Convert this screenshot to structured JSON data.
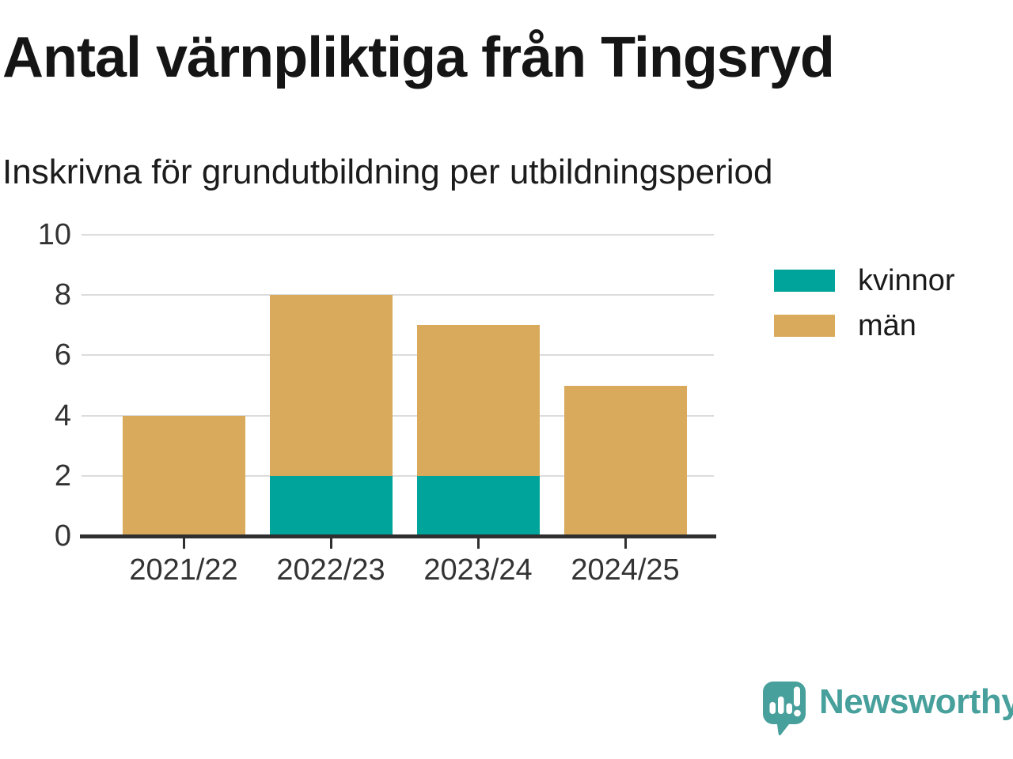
{
  "header": {
    "title": "Antal värnpliktiga från Tingsryd",
    "subtitle": "Inskrivna för grundutbildning per utbildningsperiod"
  },
  "chart_data": {
    "type": "bar",
    "stacked": true,
    "categories": [
      "2021/22",
      "2022/23",
      "2023/24",
      "2024/25"
    ],
    "series": [
      {
        "name": "kvinnor",
        "color": "#00A49A",
        "values": [
          0,
          2,
          2,
          0
        ]
      },
      {
        "name": "män",
        "color": "#D9A95C",
        "values": [
          4,
          6,
          5,
          5
        ]
      }
    ],
    "totals": [
      4,
      8,
      7,
      5
    ],
    "ylim": [
      0,
      10
    ],
    "yticks": [
      0,
      2,
      4,
      6,
      8,
      10
    ],
    "grid": true,
    "legend_position": "right"
  },
  "footer": {
    "brand": "Newsworthy",
    "brand_color": "#47A09B"
  }
}
